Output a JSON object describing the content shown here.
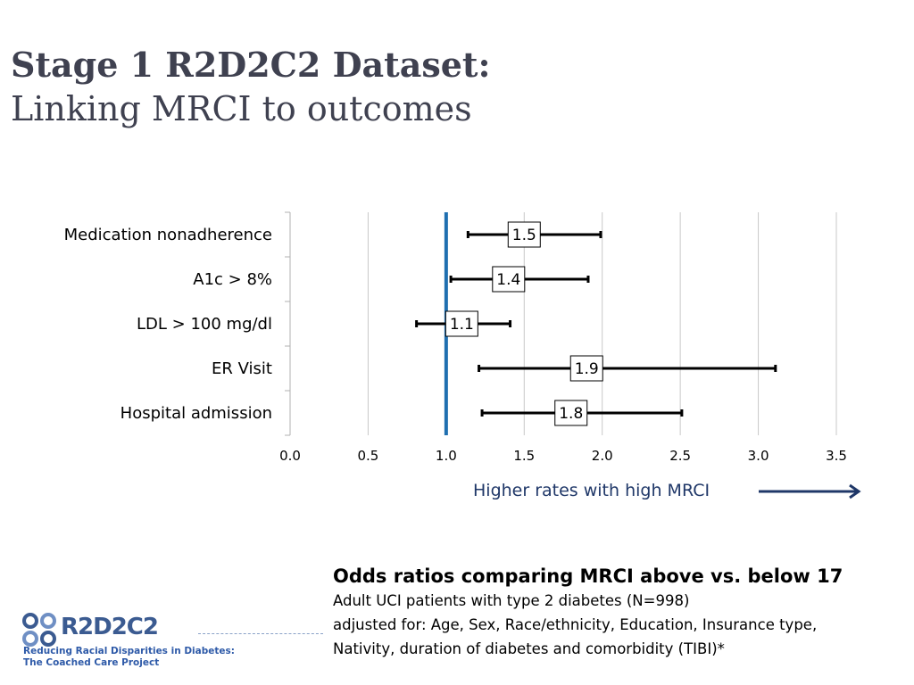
{
  "title": {
    "line1": "Stage 1 R2D2C2 Dataset:",
    "line2": "Linking MRCI to outcomes"
  },
  "chart_data": {
    "type": "forest",
    "categories": [
      "Medication nonadherence",
      "A1c > 8%",
      "LDL > 100 mg/dl",
      "ER Visit",
      "Hospital admission"
    ],
    "estimates": [
      1.5,
      1.4,
      1.1,
      1.9,
      1.8
    ],
    "estimate_labels": [
      "1.5",
      "1.4",
      "1.1",
      "1.9",
      "1.8"
    ],
    "ci_lower": [
      1.14,
      1.03,
      0.81,
      1.21,
      1.23
    ],
    "ci_upper": [
      1.99,
      1.91,
      1.41,
      3.11,
      2.51
    ],
    "reference_line": 1.0,
    "xlim": [
      0.0,
      3.5
    ],
    "xticks": [
      "0.0",
      "0.5",
      "1.0",
      "1.5",
      "2.0",
      "2.5",
      "3.0",
      "3.5"
    ],
    "grid": true,
    "colors": {
      "reference": "#1f6fb0",
      "bars": "#000000",
      "grid": "#c8c8c8"
    }
  },
  "annotation": {
    "direction_label": "Higher rates with high MRCI",
    "arrow_color": "#1f3768"
  },
  "note": {
    "heading": "Odds ratios comparing MRCI above vs. below 17",
    "line1": "Adult UCI patients with type 2 diabetes (N=998)",
    "line2": "adjusted for:   Age, Sex, Race/ethnicity, Education, Insurance type,",
    "line3": "Nativity, duration of diabetes and comorbidity (TIBI)*"
  },
  "logo": {
    "brand": "R2D2C2",
    "tagline1": "Reducing Racial Disparities in Diabetes:",
    "tagline2": "The Coached Care Project"
  }
}
